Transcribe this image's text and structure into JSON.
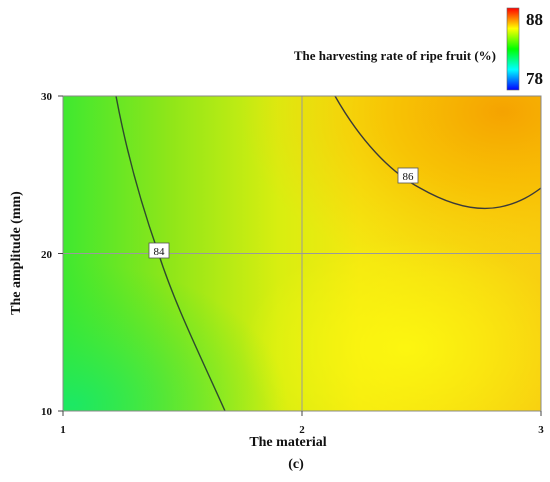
{
  "chart_data": {
    "type": "heatmap",
    "subtype": "contour",
    "xlabel": "The material",
    "ylabel": "The amplitude (mm)",
    "x_ticks": [
      1,
      2,
      3
    ],
    "y_ticks": [
      10,
      20,
      30
    ],
    "xlim": [
      1,
      3
    ],
    "ylim": [
      10,
      30
    ],
    "colorbar": {
      "title": "The harvesting rate of ripe fruit (%)",
      "max_label": "88",
      "min_label": "78",
      "max": 88,
      "min": 78,
      "colors": [
        "#0000ff",
        "#00ffff",
        "#00ff00",
        "#ffff00",
        "#ff0000"
      ],
      "max_label_color": "#c00000",
      "min_label_color": "#1a1aa6"
    },
    "contour_labels": [
      {
        "text": "84",
        "x": 1.41,
        "y": 20
      },
      {
        "text": "86",
        "x": 2.45,
        "y": 25
      }
    ],
    "grid": true,
    "grid_lines_at": {
      "x": [
        2
      ],
      "y": [
        20
      ]
    },
    "legend_position": "top-right",
    "caption": "(c)"
  }
}
